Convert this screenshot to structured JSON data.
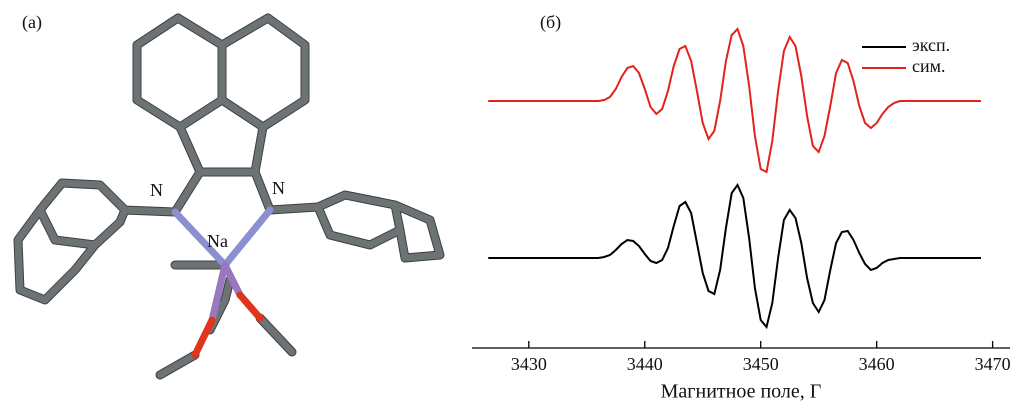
{
  "molecule": {
    "panel_label": "(a)",
    "atom_labels": [
      "N",
      "N",
      "Na"
    ]
  },
  "chart_data": {
    "type": "line",
    "panel_label": "(б)",
    "xlabel": "Магнитное поле, Г",
    "xlim": [
      3425.1,
      3471.5
    ],
    "xticks": [
      3430,
      3440,
      3450,
      3460,
      3470
    ],
    "x": [
      3426.5,
      3436,
      3436.5,
      3437,
      3437.5,
      3438,
      3438.5,
      3439,
      3439.5,
      3440,
      3440.5,
      3441,
      3441.5,
      3442,
      3442.5,
      3443,
      3443.5,
      3444,
      3444.5,
      3445,
      3445.5,
      3446,
      3446.5,
      3447,
      3447.5,
      3448,
      3448.5,
      3449,
      3449.5,
      3450,
      3450.5,
      3451,
      3451.5,
      3452,
      3452.5,
      3453,
      3453.5,
      3454,
      3454.5,
      3455,
      3455.5,
      3456,
      3456.5,
      3457,
      3457.5,
      3458,
      3458.5,
      3459,
      3459.5,
      3460,
      3460.5,
      3461,
      3461.5,
      3462,
      3469
    ],
    "series": [
      {
        "name": "эксп.",
        "color": "#000000",
        "values": [
          0,
          0,
          1,
          3,
          8,
          14,
          18,
          17,
          12,
          4,
          -3,
          -5,
          -2,
          10,
          32,
          52,
          56,
          45,
          15,
          -15,
          -33,
          -36,
          -12,
          30,
          65,
          73,
          60,
          20,
          -30,
          -62,
          -69,
          -45,
          0,
          38,
          48,
          40,
          15,
          -20,
          -45,
          -54,
          -42,
          -12,
          15,
          26,
          27,
          18,
          5,
          -6,
          -12,
          -10,
          -5,
          -2,
          -1,
          0,
          0
        ]
      },
      {
        "name": "сим.",
        "color": "#e2231a",
        "values": [
          0,
          0,
          1,
          4,
          12,
          24,
          33,
          35,
          28,
          12,
          -6,
          -13,
          -8,
          10,
          35,
          52,
          55,
          40,
          10,
          -22,
          -38,
          -30,
          0,
          40,
          66,
          72,
          55,
          15,
          -35,
          -68,
          -71,
          -40,
          10,
          50,
          64,
          55,
          25,
          -15,
          -45,
          -51,
          -35,
          -5,
          28,
          41,
          38,
          20,
          -5,
          -22,
          -27,
          -22,
          -13,
          -6,
          -2,
          0,
          0
        ]
      }
    ]
  }
}
